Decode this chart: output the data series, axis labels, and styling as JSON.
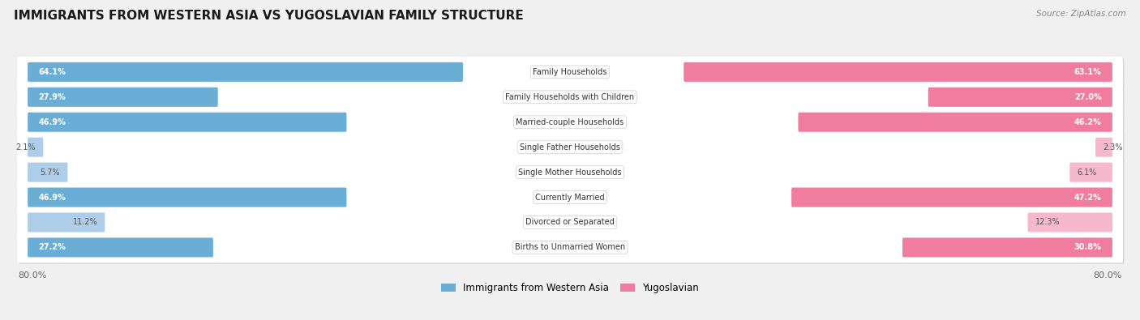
{
  "title": "IMMIGRANTS FROM WESTERN ASIA VS YUGOSLAVIAN FAMILY STRUCTURE",
  "source": "Source: ZipAtlas.com",
  "categories": [
    "Family Households",
    "Family Households with Children",
    "Married-couple Households",
    "Single Father Households",
    "Single Mother Households",
    "Currently Married",
    "Divorced or Separated",
    "Births to Unmarried Women"
  ],
  "western_asia_values": [
    64.1,
    27.9,
    46.9,
    2.1,
    5.7,
    46.9,
    11.2,
    27.2
  ],
  "yugoslavian_values": [
    63.1,
    27.0,
    46.2,
    2.3,
    6.1,
    47.2,
    12.3,
    30.8
  ],
  "max_value": 80.0,
  "color_western_asia_strong": "#6aaed6",
  "color_western_asia_light": "#aecde8",
  "color_yugoslavian_strong": "#f07ca0",
  "color_yugoslavian_light": "#f5b8cc",
  "threshold_strong": 20.0,
  "background_color": "#f0f0f0",
  "row_bg_color": "#ffffff",
  "row_shadow_color": "#d8d8d8",
  "label_color_dark": "#555555",
  "label_color_white": "#ffffff",
  "axis_label_left": "80.0%",
  "axis_label_right": "80.0%",
  "legend_blue_label": "Immigrants from Western Asia",
  "legend_pink_label": "Yugoslavian"
}
